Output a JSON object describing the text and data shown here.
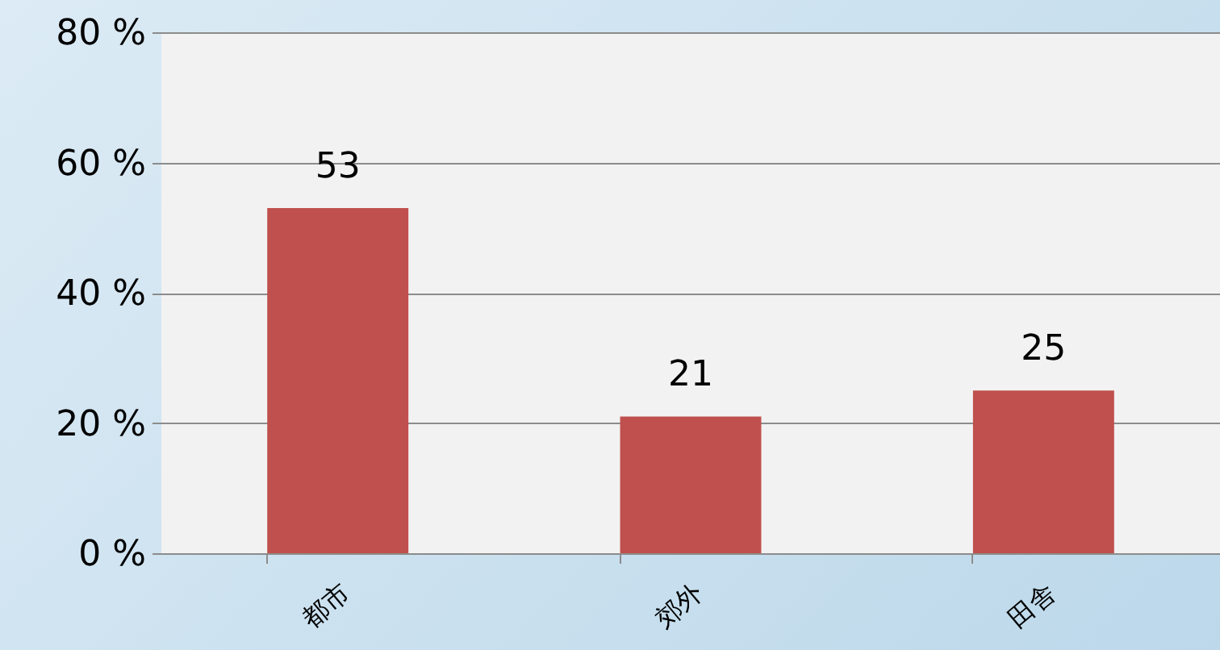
{
  "chart_data": {
    "type": "bar",
    "categories": [
      "都市",
      "郊外",
      "田舎"
    ],
    "values": [
      53,
      21,
      25
    ],
    "color": "#c0504d",
    "ylim": [
      0,
      80
    ],
    "yticks": [
      {
        "value": 0,
        "label": "0 %"
      },
      {
        "value": 20,
        "label": "20 %"
      },
      {
        "value": 40,
        "label": "40 %"
      },
      {
        "value": 60,
        "label": "60 %"
      },
      {
        "value": 80,
        "label": "80 %"
      }
    ],
    "grid": "y",
    "data_labels": true
  }
}
